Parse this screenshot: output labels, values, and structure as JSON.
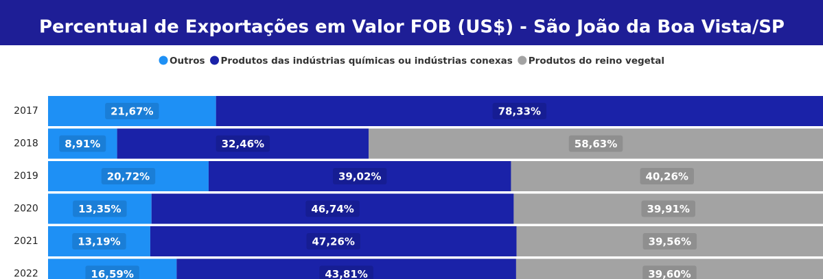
{
  "chart_data": {
    "type": "bar",
    "orientation": "horizontal",
    "stacked": "percent",
    "title": "Percentual de Exportações em Valor FOB (US$) - São João da Boa Vista/SP",
    "categories": [
      "2017",
      "2018",
      "2019",
      "2020",
      "2021",
      "2022"
    ],
    "series": [
      {
        "name": "Outros",
        "color": "#1e90f5",
        "values": [
          21.67,
          8.91,
          20.72,
          13.35,
          13.19,
          16.59
        ],
        "value_labels": [
          "21,67%",
          "8,91%",
          "20,72%",
          "13,35%",
          "13,19%",
          "16,59%"
        ]
      },
      {
        "name": "Produtos das indústrias químicas ou indústrias conexas",
        "color": "#1a22a8",
        "values": [
          78.33,
          32.46,
          39.02,
          46.74,
          47.26,
          43.81
        ],
        "value_labels": [
          "78,33%",
          "32,46%",
          "39,02%",
          "46,74%",
          "47,26%",
          "43,81%"
        ]
      },
      {
        "name": "Produtos do reino vegetal",
        "color": "#a3a3a3",
        "values": [
          null,
          58.63,
          40.26,
          39.91,
          39.56,
          39.6
        ],
        "value_labels": [
          null,
          "58,63%",
          "40,26%",
          "39,91%",
          "39,56%",
          "39,60%"
        ]
      }
    ],
    "xlim": [
      0,
      100
    ],
    "title_background": "#1e1e96"
  }
}
